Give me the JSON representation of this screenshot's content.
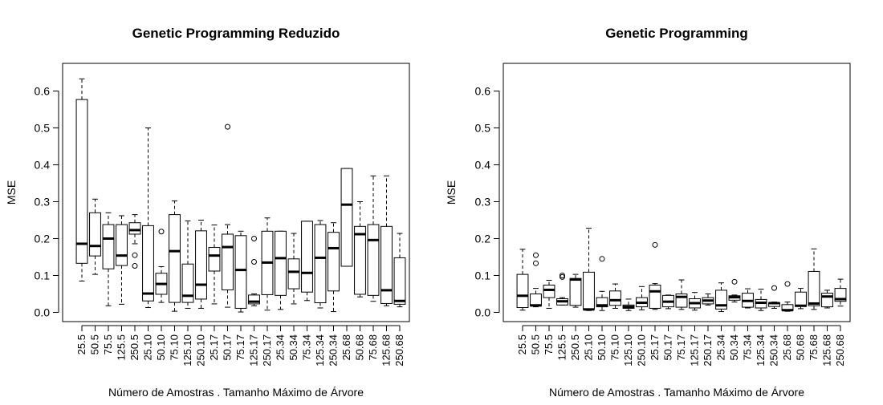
{
  "chart_data": [
    {
      "type": "boxplot",
      "title": "Genetic Programming Reduzido",
      "xlabel": "Número de Amostras . Tamanho Máximo de Árvore",
      "ylabel": "MSE",
      "ylim": [
        -0.025,
        0.675
      ],
      "yticks": [
        "0.0",
        "0.1",
        "0.2",
        "0.3",
        "0.4",
        "0.5",
        "0.6"
      ],
      "grid": false,
      "categories": [
        "25.5",
        "50.5",
        "75.5",
        "125.5",
        "250.5",
        "25.10",
        "50.10",
        "75.10",
        "125.10",
        "250.10",
        "25.17",
        "50.17",
        "75.17",
        "125.17",
        "250.17",
        "25.34",
        "50.34",
        "75.34",
        "125.34",
        "250.34",
        "25.68",
        "50.68",
        "75.68",
        "125.68",
        "250.68"
      ],
      "boxes": [
        {
          "whislo": 0.085,
          "q1": 0.133,
          "med": 0.186,
          "q3": 0.577,
          "whishi": 0.633,
          "outliers": []
        },
        {
          "whislo": 0.103,
          "q1": 0.153,
          "med": 0.18,
          "q3": 0.27,
          "whishi": 0.307,
          "outliers": []
        },
        {
          "whislo": 0.018,
          "q1": 0.118,
          "med": 0.2,
          "q3": 0.238,
          "whishi": 0.27,
          "outliers": []
        },
        {
          "whislo": 0.022,
          "q1": 0.127,
          "med": 0.154,
          "q3": 0.238,
          "whishi": 0.262,
          "outliers": []
        },
        {
          "whislo": 0.186,
          "q1": 0.212,
          "med": 0.223,
          "q3": 0.243,
          "whishi": 0.265,
          "outliers": [
            0.155,
            0.126
          ]
        },
        {
          "whislo": 0.013,
          "q1": 0.031,
          "med": 0.051,
          "q3": 0.235,
          "whishi": 0.5,
          "outliers": []
        },
        {
          "whislo": 0.027,
          "q1": 0.049,
          "med": 0.077,
          "q3": 0.106,
          "whishi": 0.124,
          "outliers": [
            0.219
          ]
        },
        {
          "whislo": 0.003,
          "q1": 0.027,
          "med": 0.166,
          "q3": 0.265,
          "whishi": 0.302,
          "outliers": []
        },
        {
          "whislo": 0.011,
          "q1": 0.027,
          "med": 0.045,
          "q3": 0.131,
          "whishi": 0.248,
          "outliers": []
        },
        {
          "whislo": 0.011,
          "q1": 0.036,
          "med": 0.075,
          "q3": 0.221,
          "whishi": 0.25,
          "outliers": []
        },
        {
          "whislo": 0.023,
          "q1": 0.112,
          "med": 0.154,
          "q3": 0.176,
          "whishi": 0.237,
          "outliers": []
        },
        {
          "whislo": 0.014,
          "q1": 0.061,
          "med": 0.177,
          "q3": 0.212,
          "whishi": 0.238,
          "outliers": [
            0.503
          ]
        },
        {
          "whislo": 0.001,
          "q1": 0.011,
          "med": 0.115,
          "q3": 0.208,
          "whishi": 0.22,
          "outliers": []
        },
        {
          "whislo": 0.018,
          "q1": 0.023,
          "med": 0.029,
          "q3": 0.047,
          "whishi": 0.05,
          "outliers": [
            0.2,
            0.137
          ]
        },
        {
          "whislo": 0.006,
          "q1": 0.048,
          "med": 0.135,
          "q3": 0.22,
          "whishi": 0.256,
          "outliers": []
        },
        {
          "whislo": 0.008,
          "q1": 0.046,
          "med": 0.147,
          "q3": 0.22,
          "whishi": 0.22,
          "outliers": []
        },
        {
          "whislo": 0.023,
          "q1": 0.064,
          "med": 0.11,
          "q3": 0.145,
          "whishi": 0.214,
          "outliers": []
        },
        {
          "whislo": 0.032,
          "q1": 0.055,
          "med": 0.107,
          "q3": 0.247,
          "whishi": 0.247,
          "outliers": []
        },
        {
          "whislo": 0.012,
          "q1": 0.026,
          "med": 0.148,
          "q3": 0.238,
          "whishi": 0.249,
          "outliers": []
        },
        {
          "whislo": 0.002,
          "q1": 0.058,
          "med": 0.174,
          "q3": 0.217,
          "whishi": 0.243,
          "outliers": []
        },
        {
          "whislo": 0.125,
          "q1": 0.125,
          "med": 0.292,
          "q3": 0.39,
          "whishi": 0.39,
          "outliers": []
        },
        {
          "whislo": 0.042,
          "q1": 0.049,
          "med": 0.212,
          "q3": 0.233,
          "whishi": 0.3,
          "outliers": []
        },
        {
          "whislo": 0.03,
          "q1": 0.046,
          "med": 0.196,
          "q3": 0.238,
          "whishi": 0.37,
          "outliers": []
        },
        {
          "whislo": 0.018,
          "q1": 0.024,
          "med": 0.06,
          "q3": 0.233,
          "whishi": 0.37,
          "outliers": []
        },
        {
          "whislo": 0.015,
          "q1": 0.022,
          "med": 0.031,
          "q3": 0.148,
          "whishi": 0.214,
          "outliers": []
        }
      ]
    },
    {
      "type": "boxplot",
      "title": "Genetic Programming",
      "xlabel": "Número de Amostras . Tamanho Máximo de Árvore",
      "ylabel": "MSE",
      "ylim": [
        -0.025,
        0.675
      ],
      "yticks": [
        "0.0",
        "0.1",
        "0.2",
        "0.3",
        "0.4",
        "0.5",
        "0.6"
      ],
      "grid": false,
      "categories": [
        "25.5",
        "50.5",
        "75.5",
        "125.5",
        "250.5",
        "25.10",
        "50.10",
        "75.10",
        "125.10",
        "250.10",
        "25.17",
        "50.17",
        "75.17",
        "125.17",
        "250.17",
        "25.34",
        "50.34",
        "75.34",
        "125.34",
        "250.34",
        "25.68",
        "50.68",
        "75.68",
        "125.68",
        "250.68"
      ],
      "boxes": [
        {
          "whislo": 0.006,
          "q1": 0.013,
          "med": 0.045,
          "q3": 0.103,
          "whishi": 0.171,
          "outliers": []
        },
        {
          "whislo": 0.015,
          "q1": 0.017,
          "med": 0.019,
          "q3": 0.05,
          "whishi": 0.065,
          "outliers": [
            0.155,
            0.133
          ]
        },
        {
          "whislo": 0.011,
          "q1": 0.04,
          "med": 0.061,
          "q3": 0.074,
          "whishi": 0.087,
          "outliers": []
        },
        {
          "whislo": 0.02,
          "q1": 0.02,
          "med": 0.03,
          "q3": 0.037,
          "whishi": 0.04,
          "outliers": [
            0.1,
            0.096
          ]
        },
        {
          "whislo": 0.014,
          "q1": 0.019,
          "med": 0.089,
          "q3": 0.092,
          "whishi": 0.103,
          "outliers": []
        },
        {
          "whislo": 0.005,
          "q1": 0.008,
          "med": 0.008,
          "q3": 0.109,
          "whishi": 0.228,
          "outliers": []
        },
        {
          "whislo": 0.005,
          "q1": 0.015,
          "med": 0.019,
          "q3": 0.04,
          "whishi": 0.057,
          "outliers": [
            0.145
          ]
        },
        {
          "whislo": 0.011,
          "q1": 0.019,
          "med": 0.033,
          "q3": 0.058,
          "whishi": 0.077,
          "outliers": []
        },
        {
          "whislo": 0.005,
          "q1": 0.011,
          "med": 0.015,
          "q3": 0.02,
          "whishi": 0.036,
          "outliers": []
        },
        {
          "whislo": 0.007,
          "q1": 0.015,
          "med": 0.026,
          "q3": 0.04,
          "whishi": 0.07,
          "outliers": []
        },
        {
          "whislo": 0.008,
          "q1": 0.011,
          "med": 0.057,
          "q3": 0.074,
          "whishi": 0.078,
          "outliers": [
            0.183
          ]
        },
        {
          "whislo": 0.01,
          "q1": 0.015,
          "med": 0.029,
          "q3": 0.046,
          "whishi": 0.047,
          "outliers": []
        },
        {
          "whislo": 0.008,
          "q1": 0.014,
          "med": 0.042,
          "q3": 0.05,
          "whishi": 0.088,
          "outliers": []
        },
        {
          "whislo": 0.006,
          "q1": 0.012,
          "med": 0.025,
          "q3": 0.037,
          "whishi": 0.054,
          "outliers": []
        },
        {
          "whislo": 0.02,
          "q1": 0.023,
          "med": 0.032,
          "q3": 0.04,
          "whishi": 0.05,
          "outliers": []
        },
        {
          "whislo": 0.002,
          "q1": 0.009,
          "med": 0.019,
          "q3": 0.06,
          "whishi": 0.08,
          "outliers": []
        },
        {
          "whislo": 0.028,
          "q1": 0.033,
          "med": 0.041,
          "q3": 0.045,
          "whishi": 0.047,
          "outliers": [
            0.083
          ]
        },
        {
          "whislo": 0.012,
          "q1": 0.014,
          "med": 0.031,
          "q3": 0.052,
          "whishi": 0.064,
          "outliers": []
        },
        {
          "whislo": 0.005,
          "q1": 0.012,
          "med": 0.026,
          "q3": 0.035,
          "whishi": 0.063,
          "outliers": []
        },
        {
          "whislo": 0.011,
          "q1": 0.016,
          "med": 0.025,
          "q3": 0.026,
          "whishi": 0.028,
          "outliers": [
            0.066
          ]
        },
        {
          "whislo": 0.003,
          "q1": 0.005,
          "med": 0.006,
          "q3": 0.021,
          "whishi": 0.028,
          "outliers": [
            0.077
          ]
        },
        {
          "whislo": 0.01,
          "q1": 0.016,
          "med": 0.018,
          "q3": 0.055,
          "whishi": 0.065,
          "outliers": []
        },
        {
          "whislo": 0.008,
          "q1": 0.018,
          "med": 0.024,
          "q3": 0.111,
          "whishi": 0.172,
          "outliers": []
        },
        {
          "whislo": 0.012,
          "q1": 0.015,
          "med": 0.043,
          "q3": 0.052,
          "whishi": 0.06,
          "outliers": []
        },
        {
          "whislo": 0.017,
          "q1": 0.03,
          "med": 0.036,
          "q3": 0.065,
          "whishi": 0.09,
          "outliers": []
        }
      ]
    }
  ]
}
